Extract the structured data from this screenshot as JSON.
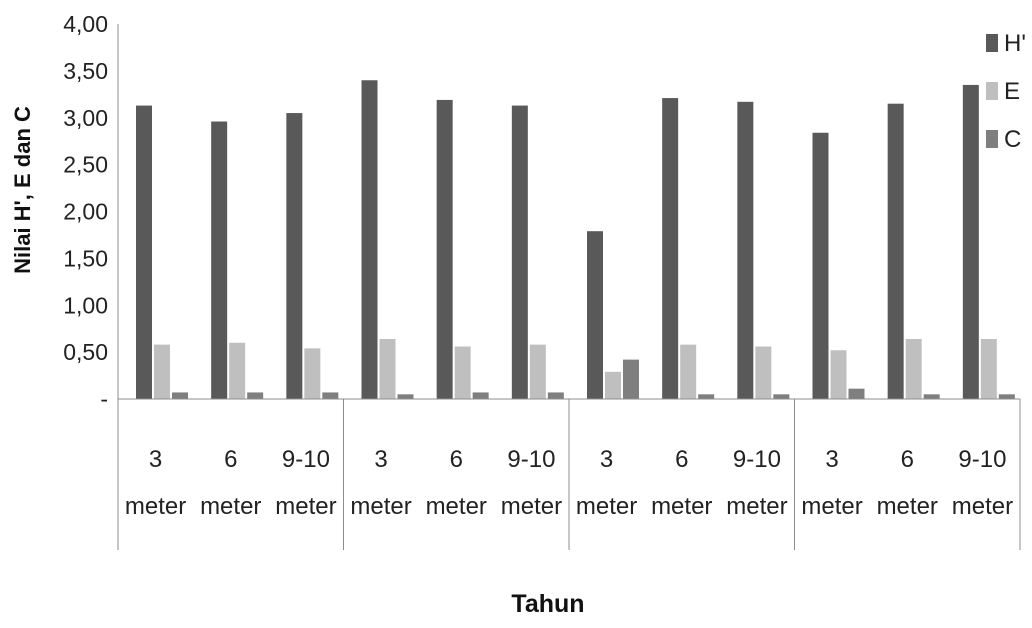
{
  "chart_data": {
    "type": "bar",
    "title": "",
    "xlabel": "Tahun",
    "ylabel": "Nilai H', E dan C",
    "ylim": [
      0,
      4
    ],
    "yticks": [
      "-",
      "0,50",
      "1,00",
      "1,50",
      "2,00",
      "2,50",
      "3,00",
      "3,50",
      "4,00"
    ],
    "grid": false,
    "legend_position": "top-right",
    "categories": [
      {
        "line1": "3",
        "line2": "meter"
      },
      {
        "line1": "6",
        "line2": "meter"
      },
      {
        "line1": "9-10",
        "line2": "meter"
      },
      {
        "line1": "3",
        "line2": "meter"
      },
      {
        "line1": "6",
        "line2": "meter"
      },
      {
        "line1": "9-10",
        "line2": "meter"
      },
      {
        "line1": "3",
        "line2": "meter"
      },
      {
        "line1": "6",
        "line2": "meter"
      },
      {
        "line1": "9-10",
        "line2": "meter"
      },
      {
        "line1": "3",
        "line2": "meter"
      },
      {
        "line1": "6",
        "line2": "meter"
      },
      {
        "line1": "9-10",
        "line2": "meter"
      }
    ],
    "group_size": 3,
    "series": [
      {
        "name": "H'",
        "color": "#595959",
        "values": [
          3.13,
          2.96,
          3.05,
          3.4,
          3.19,
          3.13,
          1.79,
          3.21,
          3.17,
          2.84,
          3.15,
          3.35
        ]
      },
      {
        "name": "E",
        "color": "#bfbfbf",
        "values": [
          0.58,
          0.6,
          0.54,
          0.64,
          0.56,
          0.58,
          0.29,
          0.58,
          0.56,
          0.52,
          0.64,
          0.64
        ]
      },
      {
        "name": "C",
        "color": "#7f7f7f",
        "values": [
          0.07,
          0.07,
          0.07,
          0.05,
          0.07,
          0.07,
          0.42,
          0.05,
          0.05,
          0.11,
          0.05,
          0.05
        ]
      }
    ]
  }
}
